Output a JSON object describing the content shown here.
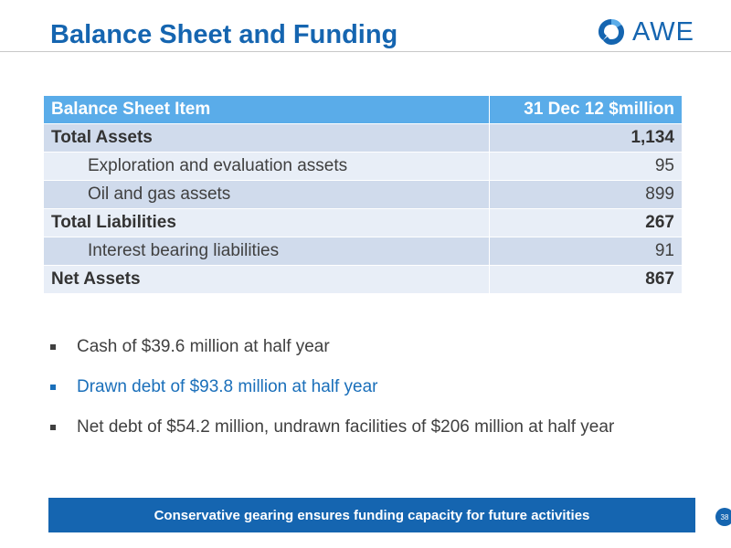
{
  "header": {
    "title": "Balance Sheet and Funding",
    "logo_text": "AWE"
  },
  "table": {
    "columns": [
      "Balance Sheet Item",
      "31 Dec 12   $million"
    ],
    "rows": [
      {
        "label": "Total Assets",
        "value": "1,134"
      },
      {
        "label": "Exploration and evaluation assets",
        "value": "95"
      },
      {
        "label": "Oil and gas assets",
        "value": "899"
      },
      {
        "label": "Total Liabilities",
        "value": "267"
      },
      {
        "label": "Interest bearing liabilities",
        "value": "91"
      },
      {
        "label": "Net Assets",
        "value": "867"
      }
    ]
  },
  "bullets": [
    "Cash of $39.6 million at half year",
    "Drawn debt of $93.8 million at half year",
    "Net debt of $54.2 million, undrawn facilities of $206 million at half year"
  ],
  "banner": {
    "text": "Conservative gearing ensures funding capacity for future activities"
  },
  "footer": {
    "page_number": "38"
  },
  "colors": {
    "brand_blue": "#1565b0",
    "header_row": "#5aace9",
    "row_dark": "#d0dbec",
    "row_light": "#e8eef7"
  }
}
